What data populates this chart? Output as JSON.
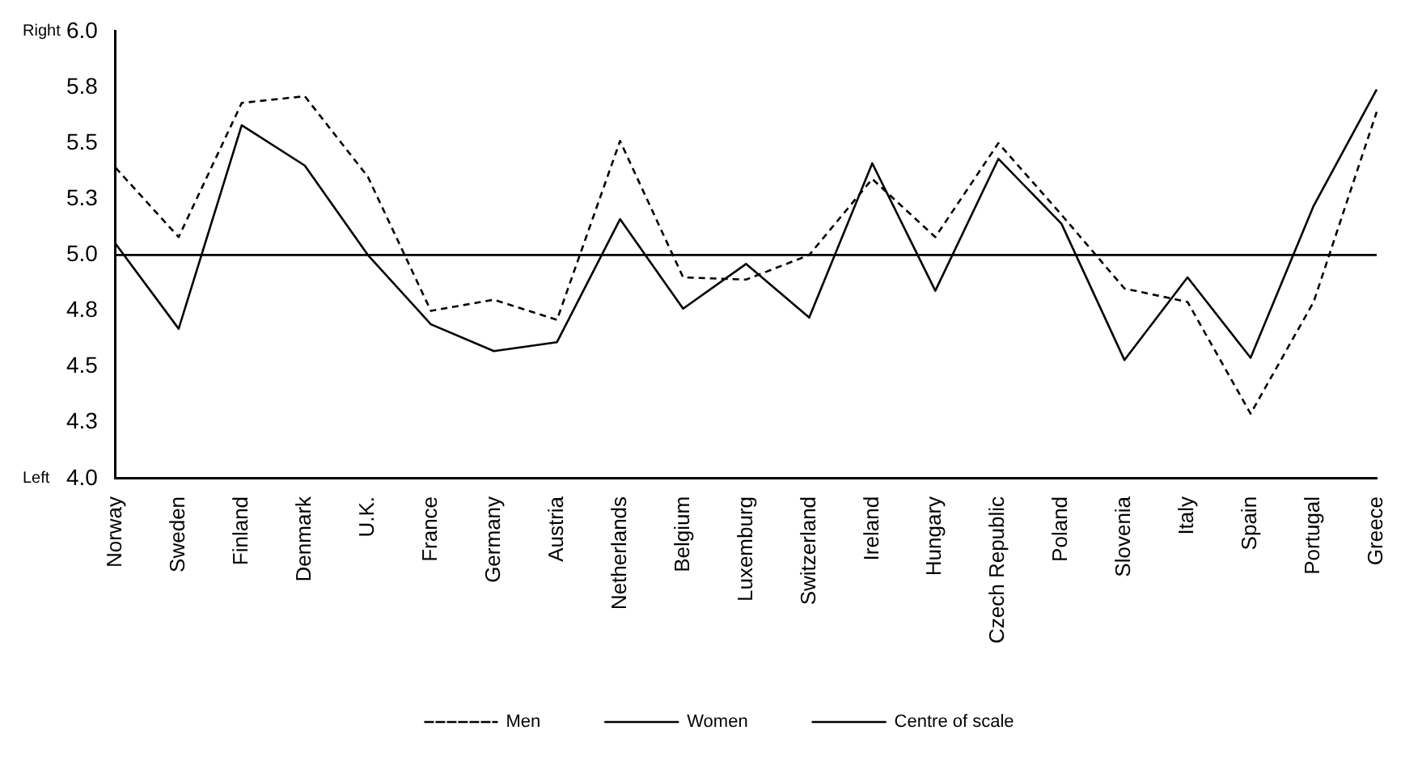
{
  "chart_data": {
    "type": "line",
    "categories": [
      "Norway",
      "Sweden",
      "Finland",
      "Denmark",
      "U.K.",
      "France",
      "Germany",
      "Austria",
      "Netherlands",
      "Belgium",
      "Luxemburg",
      "Switzerland",
      "Ireland",
      "Hungary",
      "Czech Republic",
      "Poland",
      "Slovenia",
      "Italy",
      "Spain",
      "Portugal",
      "Greece"
    ],
    "series": [
      {
        "name": "Men",
        "color": "#000000",
        "line_style": "dashed",
        "values": [
          5.39,
          5.08,
          5.68,
          5.71,
          5.35,
          4.75,
          4.8,
          4.71,
          5.51,
          4.9,
          4.89,
          5.0,
          5.34,
          5.08,
          5.5,
          5.18,
          4.85,
          4.79,
          4.29,
          4.79,
          5.64
        ]
      },
      {
        "name": "Women",
        "color": "#000000",
        "line_style": "solid",
        "values": [
          5.05,
          4.67,
          5.58,
          5.4,
          5.0,
          4.69,
          4.57,
          4.61,
          5.16,
          4.76,
          4.96,
          4.72,
          5.41,
          4.84,
          5.43,
          5.14,
          4.53,
          4.9,
          4.54,
          5.22,
          5.74
        ]
      },
      {
        "name": "Centre of scale",
        "color": "#000000",
        "line_style": "solid",
        "values": [
          5,
          5,
          5,
          5,
          5,
          5,
          5,
          5,
          5,
          5,
          5,
          5,
          5,
          5,
          5,
          5,
          5,
          5,
          5,
          5,
          5
        ]
      }
    ],
    "ylim": [
      4.0,
      6.0
    ],
    "yticks": [
      {
        "value": 4.0,
        "label": "4.0"
      },
      {
        "value": 4.25,
        "label": "4.3"
      },
      {
        "value": 4.5,
        "label": "4.5"
      },
      {
        "value": 4.75,
        "label": "4.8"
      },
      {
        "value": 5.0,
        "label": "5.0"
      },
      {
        "value": 5.25,
        "label": "5.3"
      },
      {
        "value": 5.5,
        "label": "5.5"
      },
      {
        "value": 5.75,
        "label": "5.8"
      },
      {
        "value": 6.0,
        "label": "6.0"
      }
    ],
    "annotations": [
      "Right",
      "Left"
    ],
    "marker": "none",
    "legend": "bottom"
  }
}
